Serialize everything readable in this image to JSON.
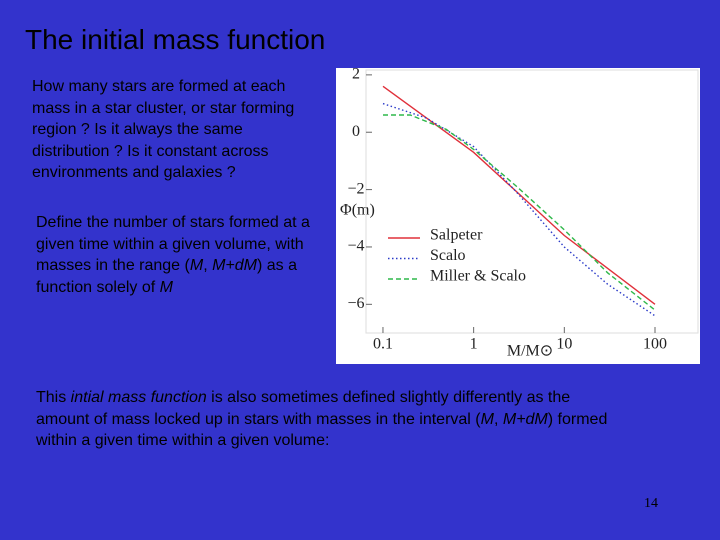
{
  "slide": {
    "title": "The initial mass function",
    "paragraphs": [
      [
        {
          "text": "How many stars are formed at each mass in a star cluster, or star forming region ? Is it always the same distribution ? Is it constant across environments and galaxies ?",
          "italic": false
        }
      ],
      [
        {
          "text": "Define the number of stars formed at a given time within a given volume, with masses in the range (",
          "italic": false
        },
        {
          "text": "M",
          "italic": true
        },
        {
          "text": ", ",
          "italic": false
        },
        {
          "text": "M+dM",
          "italic": true
        },
        {
          "text": ") as a function solely of ",
          "italic": false
        },
        {
          "text": "M",
          "italic": true
        }
      ],
      [
        {
          "text": "This ",
          "italic": false
        },
        {
          "text": "intial mass function",
          "italic": true
        },
        {
          "text": " is also sometimes defined slightly differently as the amount of mass locked up in stars with masses in the interval (",
          "italic": false
        },
        {
          "text": "M",
          "italic": true
        },
        {
          "text": ", ",
          "italic": false
        },
        {
          "text": "M+dM",
          "italic": true
        },
        {
          "text": ") formed within a given time  within a given volume:",
          "italic": false
        }
      ]
    ],
    "page_number": "14"
  },
  "chart_data": {
    "type": "line",
    "x_label": "M/M⊙",
    "y_label": "Φ(m)",
    "x_log": true,
    "xlim": [
      0.065,
      298
    ],
    "ylim": [
      -7.0,
      2.17
    ],
    "xticks": [
      0.1,
      1,
      10,
      100
    ],
    "yticks": [
      2,
      0,
      {
        "value": -2,
        "label": "−2"
      },
      {
        "value": -4,
        "label": "−4"
      },
      {
        "value": -6,
        "label": "−6"
      }
    ],
    "series": [
      {
        "name": "Salpeter",
        "color": "#e0303a",
        "dash": "solid",
        "x": [
          0.1,
          1,
          10,
          100
        ],
        "values": [
          1.6,
          -0.7,
          -3.6,
          -6.0
        ]
      },
      {
        "name": "Scalo",
        "color": "#2a3ac8",
        "dash": "dotted",
        "x": [
          0.1,
          0.3,
          1,
          3,
          10,
          30,
          100
        ],
        "values": [
          1.0,
          0.5,
          -0.5,
          -2.1,
          -4.0,
          -5.3,
          -6.4
        ]
      },
      {
        "name": "Miller & Scalo",
        "color": "#2fb84a",
        "dash": "dashed",
        "x": [
          0.1,
          0.2,
          0.5,
          1,
          3,
          10,
          30,
          100
        ],
        "values": [
          0.6,
          0.6,
          0.1,
          -0.6,
          -1.9,
          -3.4,
          -4.9,
          -6.2
        ]
      }
    ]
  }
}
